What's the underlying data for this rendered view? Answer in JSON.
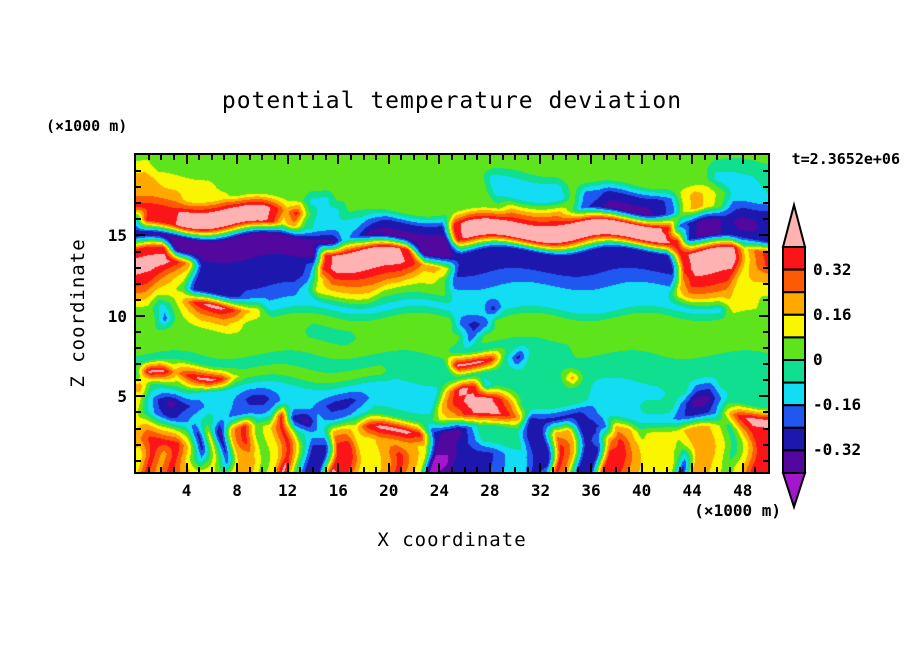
{
  "title": "potential temperature deviation",
  "time_label": "t=2.3652e+06",
  "x_axis": {
    "title": "X coordinate",
    "unit_label": "(×1000 m)",
    "tick_labels": [
      4,
      8,
      12,
      16,
      20,
      24,
      28,
      32,
      36,
      40,
      44,
      48
    ],
    "range": [
      0,
      50
    ],
    "minor_step": 1
  },
  "y_axis": {
    "title": "Z coordinate",
    "unit_label": "(×1000 m)",
    "tick_labels": [
      5,
      10,
      15
    ],
    "range": [
      0.3,
      20
    ],
    "minor_step": 1
  },
  "colorbar": {
    "boundary_labels": [
      "0.32",
      "0.16",
      "0",
      "-0.16",
      "-0.32"
    ]
  },
  "chart_data": {
    "type": "filled_contour",
    "title": "potential temperature deviation",
    "xlabel": "X coordinate (×1000 m)",
    "ylabel": "Z coordinate (×1000 m)",
    "x_range": [
      0,
      50
    ],
    "z_range": [
      0.3,
      20
    ],
    "levels": [
      -0.4,
      -0.32,
      -0.24,
      -0.16,
      -0.08,
      0,
      0.08,
      0.16,
      0.24,
      0.32,
      0.4
    ],
    "colors": [
      "#A316CC",
      "#52079E",
      "#1D17AD",
      "#2057F0",
      "#12DDF2",
      "#0FDF8F",
      "#5EE41C",
      "#FAF500",
      "#FFA800",
      "#FC5A03",
      "#FB1418",
      "#FFB2B2"
    ],
    "value_map": {
      "P": 0.44,
      "R": 0.36,
      "O": 0.28,
      "o": 0.2,
      "Y": 0.12,
      "G": 0.04,
      "T": -0.04,
      "C": -0.12,
      "B": -0.2,
      "N": -0.28,
      "I": -0.36,
      "V": -0.44
    },
    "grid": [
      "GGGGGGGGGGGGGGGGGGGGGGGGGGGGGGGGGGGGGGGGGGGGGGGGGGGG",
      "YYGGGGGGGGGGGGGGGGGGGGGGGGGGGGGGGGGGGGGGGGGGGGGTTTTT",
      "ooYYYYYGGGGGGGGGGGGGGGGGGGGGGCCCCCCGGGGGGGGGGGGCCCCT",
      "ooooYYYYGGGGGGCCGGGGGGGGGGGGGCCCCCCGBBNNNNNBYoYGCCCC",
      "RRRRPPPPPPPRoRGCCGGGGGGGGGGGGGoooooGBNIIIINBYoYGBNNN",
      "CRRRPPPPPPPRYoTCCCCBNNNNNNRPPPPPPPPPPPPPPPPRBNIINIIN",
      "IIIIIIIIIIIIIIIIICBIIIIIIIRPPPPPPPPPPPPPPPPPRNIINNNN",
      "RRRIIIIIIIIIIIIRPPPPPPRIIINNNNNNNNNNNNNNNNNNRPPPPYOR",
      "PPPRoNNNNNNNNNBRPPPPPPRooYNNNNNNNNNNNNNNNNNNRPPPPYOR",
      "RROoYNNNNNNNNNBYOOOOOOoYYGBBBBBBBBBBBBBBBBBBoRRRRYoo",
      "ooYYGNNNNBBBBBCYYYYYGGGGGGCCCCCCCCCCCCCCCCCCYooooYYY",
      "GGCGoRPPRoYCCCCCCCCCCCCCCCCCCNCCCCCCCCCCCCCCCCCCYYYG",
      "GGBGYoooYGGGGGGGGGGGGGGGGGBNBGGGGGGGGGGGGGGGGGGGGGGG",
      "GGGGGGGGGGGGGGTTTTGGGGGGGGGBGGGGGGGGGGGGGGGGGGGGGGGG",
      "GGGGGGGGGGGGGGGGGGGGGGGGGGTTTTTTTTTTGGGGGGGGGGGGGGGG",
      "TTTTTTTTTTTTTTTTTTTTTTTTTTPPPRTNTTTTTTTTTTTTTTTTTTTT",
      "TPPoRPPRYGGGGGGGGGGGGTTTTTTTTTTTTTToTTTTTTTTTTTTTTTT",
      "oTTTTCCCCCCCCCCCCCCCCCCCCoPRCTTTTTTTTCCCCCCTTBBTTTTT",
      "YCNINBCCBNNBCCCBNNBCCCCCCoRPPRoTTTTTTCCCCTTTBIIBTTTT",
      "YTBNBCTCBBBCRNICBBCTTTTTTYoRPPRoNNNNNBCCCCCCBNNBYRPP",
      "YoYYGNYIoRGYRTCCooYRPPPRNIIBTTTTNNooNNBooGYYYooYToRR",
      "oRRRYNYNoRGYRGNNRRYYoooYIINBTTTTNNRoNBoRoYYYGooYTYRR",
      "YRoRYCYBooGYRGNNRRYYoRoYVVNNNBCCNNRoNNRRoYYYBooYTYRR",
      "YRoRoYYGooGYPGNNPRYYoRoYVINNNBCCNBRoNNRRoYYYIooYGYRR"
    ]
  }
}
